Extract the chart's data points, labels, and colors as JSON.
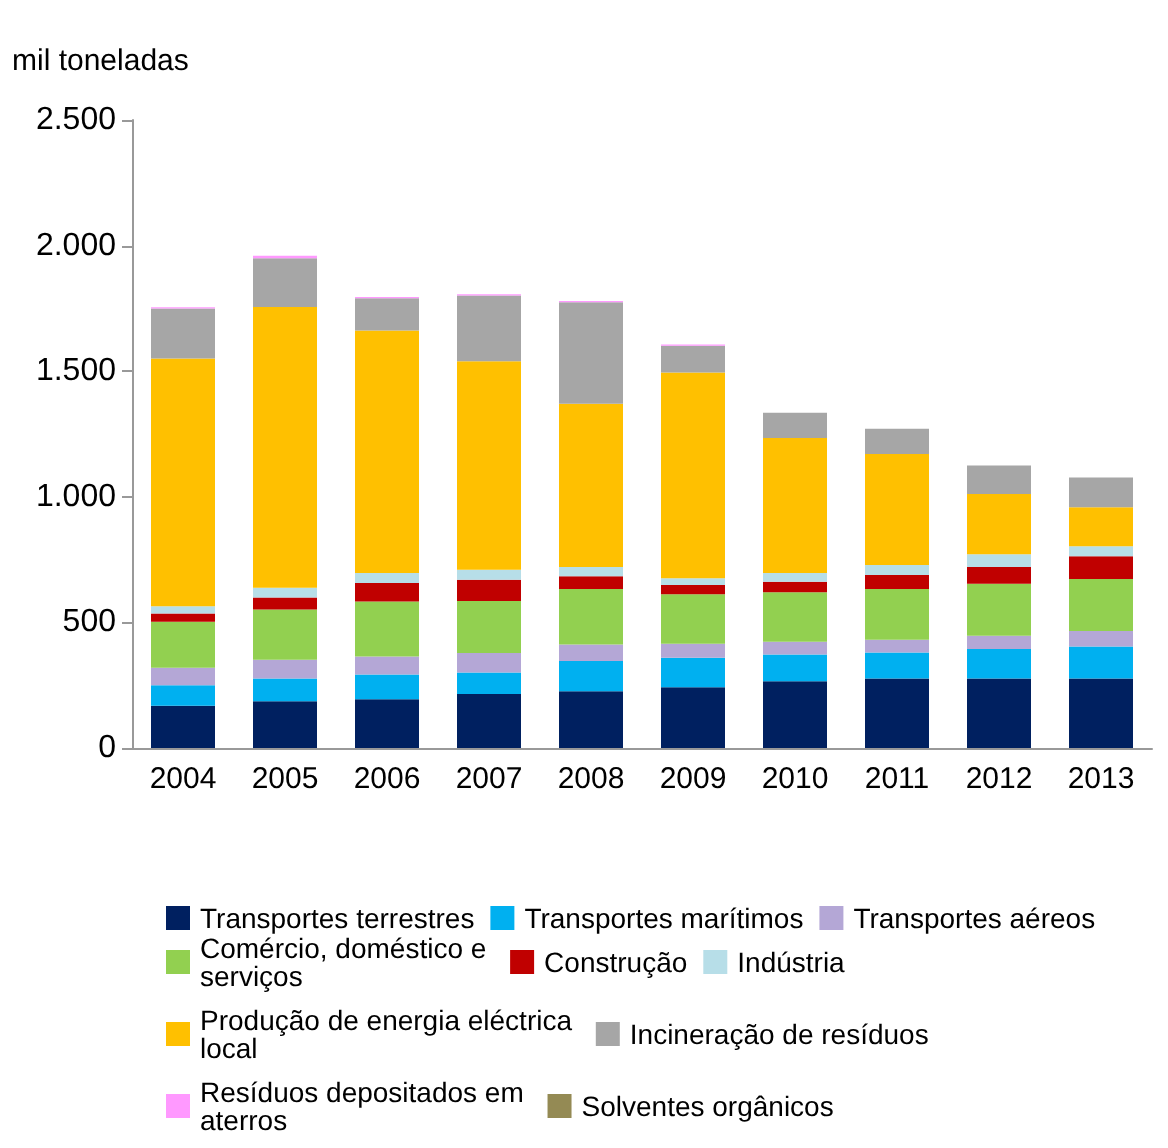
{
  "chart_data": {
    "type": "bar",
    "stacked": true,
    "ylabel": "mil toneladas",
    "categories": [
      "2004",
      "2005",
      "2006",
      "2007",
      "2008",
      "2009",
      "2010",
      "2011",
      "2012",
      "2013"
    ],
    "series": [
      {
        "name": "Transportes terrestres",
        "color": "#002060",
        "values": [
          168,
          186,
          194,
          215,
          226,
          242,
          266,
          277,
          277,
          277
        ]
      },
      {
        "name": "Transportes marítimos",
        "color": "#00b0f0",
        "values": [
          82,
          91,
          99,
          86,
          120,
          117,
          106,
          103,
          117,
          127
        ]
      },
      {
        "name": "Transportes aéreos",
        "color": "#b4a7d6",
        "values": [
          69,
          74,
          71,
          77,
          66,
          56,
          51,
          51,
          53,
          62
        ]
      },
      {
        "name": "Comércio, doméstico e serviços",
        "color": "#92d050",
        "values": [
          184,
          200,
          219,
          207,
          221,
          197,
          197,
          202,
          207,
          207
        ]
      },
      {
        "name": "Construção",
        "color": "#c00000",
        "values": [
          32,
          48,
          74,
          85,
          51,
          37,
          42,
          56,
          67,
          90
        ]
      },
      {
        "name": "Indústria",
        "color": "#b7dee8",
        "values": [
          29,
          39,
          40,
          40,
          37,
          27,
          35,
          40,
          50,
          40
        ]
      },
      {
        "name": "Produção de energia eléctrica local",
        "color": "#ffc000",
        "values": [
          987,
          1118,
          965,
          830,
          649,
          819,
          537,
          441,
          240,
          155
        ]
      },
      {
        "name": "Incineração de resíduos",
        "color": "#a6a6a6",
        "values": [
          199,
          194,
          128,
          261,
          404,
          106,
          101,
          101,
          114,
          119
        ]
      },
      {
        "name": "Resíduos depositados em aterros",
        "color": "#ff99ff",
        "values": [
          5,
          10,
          5,
          5,
          5,
          5,
          null,
          null,
          null,
          null
        ]
      },
      {
        "name": "Solventes orgânicos",
        "color": "#948a54",
        "values": [
          null,
          null,
          null,
          null,
          null,
          null,
          null,
          null,
          null,
          null
        ]
      }
    ],
    "ylim": [
      0,
      2500
    ],
    "yticks": [
      0,
      500,
      {
        "value": 1000,
        "label": "1.000"
      },
      {
        "value": 1500,
        "label": "1.500"
      },
      {
        "value": 2000,
        "label": "2.000"
      },
      {
        "value": 2500,
        "label": "2.500"
      }
    ],
    "grid": false,
    "legend": "bottom"
  }
}
